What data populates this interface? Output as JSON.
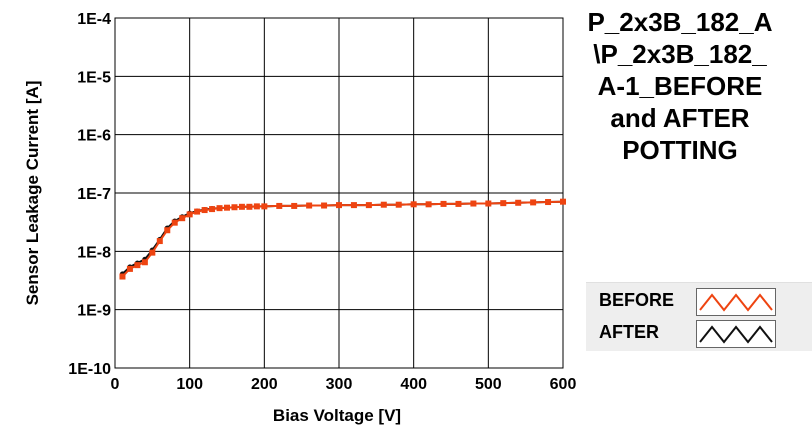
{
  "chart_data": {
    "type": "line",
    "title_lines": [
      "P_2x3B_182_A",
      "\\P_2x3B_182_",
      "A-1_BEFORE",
      "and AFTER",
      "POTTING"
    ],
    "xlabel": "Bias Voltage [V]",
    "ylabel": "Sensor Leakage Current [A]",
    "xlim": [
      0,
      600
    ],
    "ylim": [
      1e-10,
      0.0001
    ],
    "yscale": "log",
    "grid": true,
    "legend_position": "bottom-right",
    "x_ticks": [
      {
        "value": 0,
        "label": "0"
      },
      {
        "value": 100,
        "label": "100"
      },
      {
        "value": 200,
        "label": "200"
      },
      {
        "value": 300,
        "label": "300"
      },
      {
        "value": 400,
        "label": "400"
      },
      {
        "value": 500,
        "label": "500"
      },
      {
        "value": 600,
        "label": "600"
      }
    ],
    "y_ticks": [
      {
        "value": 0.0001,
        "label": "1E-4"
      },
      {
        "value": 1e-05,
        "label": "1E-5"
      },
      {
        "value": 1e-06,
        "label": "1E-6"
      },
      {
        "value": 1e-07,
        "label": "1E-7"
      },
      {
        "value": 1e-08,
        "label": "1E-8"
      },
      {
        "value": 1e-09,
        "label": "1E-9"
      },
      {
        "value": 1e-10,
        "label": "1E-10"
      }
    ],
    "x": [
      10,
      20,
      30,
      40,
      50,
      60,
      70,
      80,
      90,
      100,
      110,
      120,
      130,
      140,
      150,
      160,
      170,
      180,
      190,
      200,
      220,
      240,
      260,
      280,
      300,
      320,
      340,
      360,
      380,
      400,
      420,
      440,
      460,
      480,
      500,
      520,
      540,
      560,
      580,
      600
    ],
    "series": [
      {
        "name": "BEFORE",
        "color": "#ee4411",
        "values": [
          3.7e-09,
          5e-09,
          5.8e-09,
          6.5e-09,
          9.5e-09,
          1.5e-08,
          2.3e-08,
          3.1e-08,
          3.7e-08,
          4.3e-08,
          4.8e-08,
          5.1e-08,
          5.3e-08,
          5.5e-08,
          5.6e-08,
          5.7e-08,
          5.8e-08,
          5.8e-08,
          5.9e-08,
          5.9e-08,
          6e-08,
          6e-08,
          6.1e-08,
          6.1e-08,
          6.2e-08,
          6.2e-08,
          6.2e-08,
          6.3e-08,
          6.3e-08,
          6.4e-08,
          6.4e-08,
          6.5e-08,
          6.5e-08,
          6.6e-08,
          6.6e-08,
          6.7e-08,
          6.8e-08,
          6.9e-08,
          7e-08,
          7.1e-08
        ]
      },
      {
        "name": "AFTER",
        "color": "#111111",
        "values": [
          4.1e-09,
          5.4e-09,
          6.3e-09,
          7.3e-09,
          1.05e-08,
          1.6e-08,
          2.5e-08,
          3.3e-08,
          3.9e-08,
          4.5e-08,
          4.9e-08,
          5.2e-08,
          5.4e-08,
          5.5e-08,
          5.6e-08,
          5.7e-08,
          5.8e-08,
          5.8e-08,
          5.9e-08,
          5.9e-08,
          6e-08,
          6e-08,
          6.1e-08,
          6.1e-08,
          6.2e-08,
          6.2e-08,
          6.2e-08,
          6.3e-08,
          6.3e-08,
          6.4e-08,
          6.4e-08,
          6.5e-08,
          6.5e-08,
          6.6e-08,
          6.6e-08,
          6.7e-08,
          6.8e-08,
          6.9e-08,
          7e-08,
          7.1e-08
        ]
      }
    ]
  },
  "legend": {
    "items": [
      {
        "label": "BEFORE",
        "color": "#ee4411"
      },
      {
        "label": "AFTER",
        "color": "#111111"
      }
    ]
  }
}
